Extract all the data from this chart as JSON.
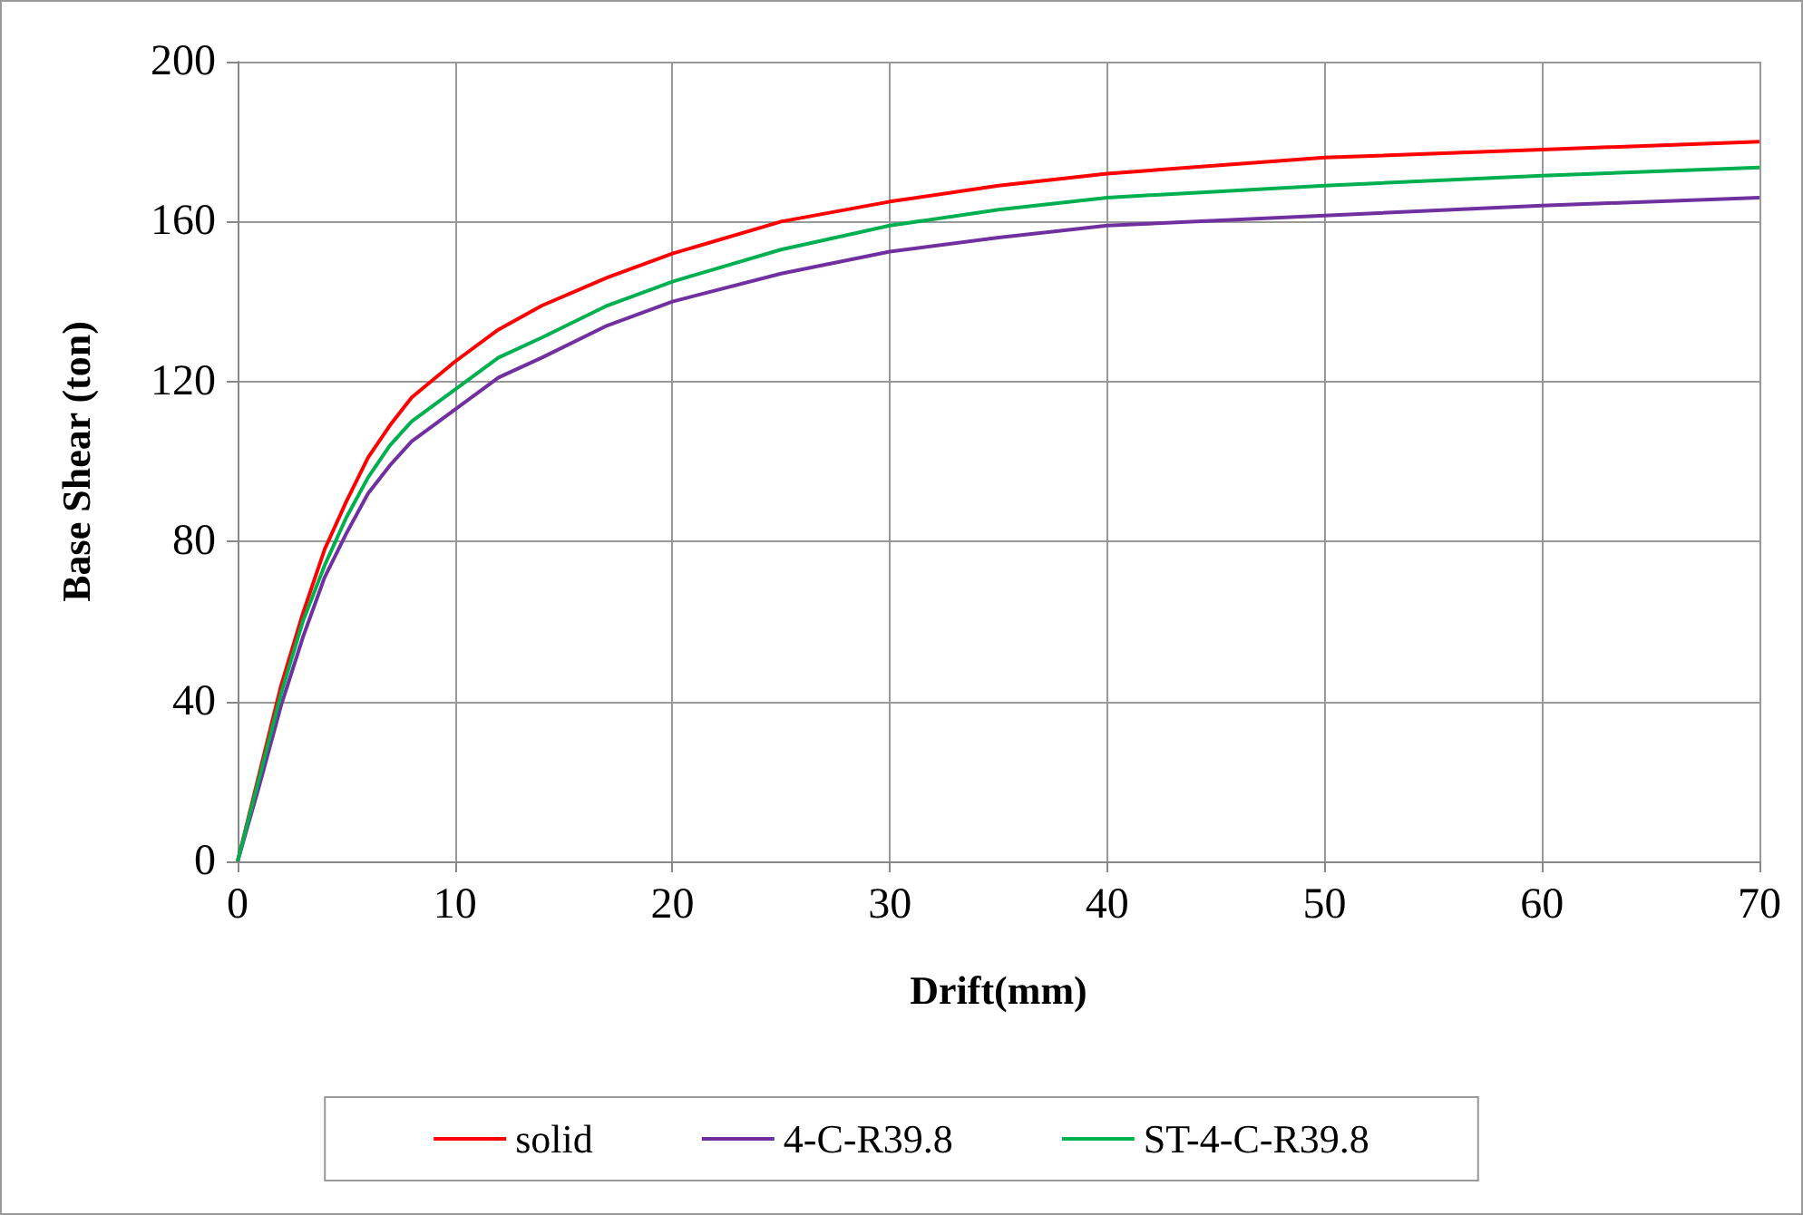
{
  "chart_data": {
    "type": "line",
    "xlabel": "Drift(mm)",
    "ylabel": "Base Shear (ton)",
    "x": [
      0,
      1,
      2,
      3,
      4,
      5,
      6,
      7,
      8,
      10,
      12,
      14,
      17,
      20,
      25,
      30,
      35,
      40,
      50,
      60,
      70
    ],
    "series": [
      {
        "name": "solid",
        "color": "#ff0000",
        "values": [
          0,
          22,
          44,
          62,
          78,
          90,
          101,
          109,
          116,
          125,
          133,
          139,
          146,
          152,
          160,
          165,
          169,
          172,
          176,
          178,
          180
        ]
      },
      {
        "name": "4-C-R39.8",
        "color": "#7030a0",
        "values": [
          0,
          19,
          39,
          56,
          71,
          82,
          92,
          99,
          105,
          113,
          121,
          126,
          134,
          140,
          147,
          152.5,
          156,
          159,
          161.5,
          164,
          166
        ]
      },
      {
        "name": "ST-4-C-R39.8",
        "color": "#00b050",
        "values": [
          0,
          21,
          42,
          60,
          74,
          86,
          96,
          104,
          110,
          118,
          126,
          131,
          139,
          145,
          153,
          159,
          163,
          166,
          169,
          171.5,
          173.5
        ]
      }
    ],
    "xlim": [
      0,
      70
    ],
    "xticks": [
      0,
      10,
      20,
      30,
      40,
      50,
      60,
      70
    ],
    "ylim": [
      0,
      200
    ],
    "yticks": [
      0,
      40,
      80,
      120,
      160,
      200
    ],
    "grid": true,
    "legend": "bottom",
    "marker": "none",
    "line_style": "solid"
  }
}
